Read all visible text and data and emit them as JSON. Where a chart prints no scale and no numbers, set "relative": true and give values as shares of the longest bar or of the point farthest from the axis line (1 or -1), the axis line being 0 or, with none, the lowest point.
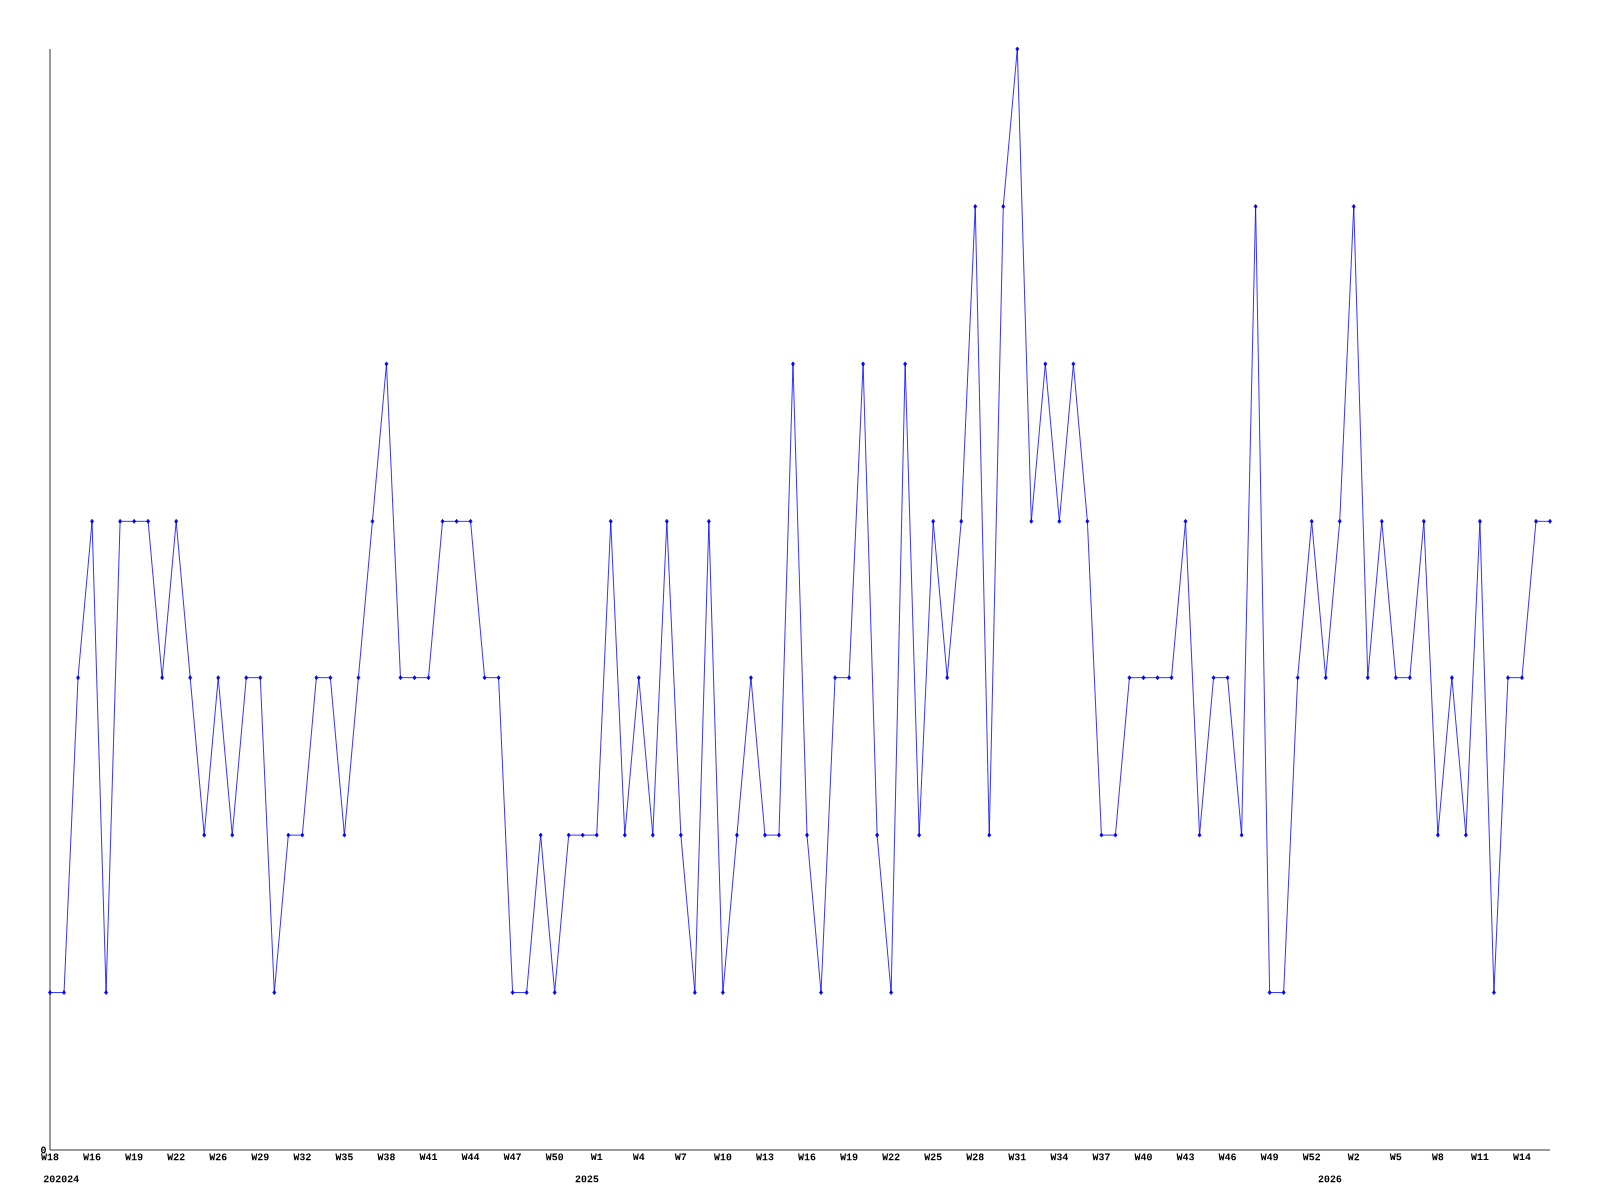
{
  "chart_data": {
    "type": "line",
    "relative": true,
    "color": "#0000ff",
    "marker": "diamond",
    "line_style": "solid",
    "categories": [
      "W18",
      null,
      null,
      "W16",
      null,
      null,
      "W19",
      null,
      null,
      "W22",
      null,
      null,
      "W26",
      null,
      null,
      "W29",
      null,
      null,
      "W32",
      null,
      null,
      "W35",
      null,
      null,
      "W38",
      null,
      null,
      "W41",
      null,
      null,
      "W44",
      null,
      null,
      "W47",
      null,
      null,
      "W50",
      null,
      null,
      "W1",
      null,
      null,
      "W4",
      null,
      null,
      "W7",
      null,
      null,
      "W10",
      null,
      null,
      "W13",
      null,
      null,
      "W16",
      null,
      null,
      "W19",
      null,
      null,
      "W22",
      null,
      null,
      "W25",
      null,
      null,
      "W28",
      null,
      null,
      "W31",
      null,
      null,
      "W34",
      null,
      null,
      "W37",
      null,
      null,
      "W40",
      null,
      null,
      "W43",
      null,
      null,
      "W46",
      null,
      null,
      "W49",
      null,
      null,
      "W52",
      null,
      null,
      "W2",
      null,
      null,
      "W5",
      null,
      null,
      "W8",
      null,
      null,
      "W11",
      null,
      null,
      "W14",
      null,
      null
    ],
    "values": [
      0.143,
      0.143,
      0.429,
      0.571,
      0.143,
      0.571,
      0.571,
      0.571,
      0.429,
      0.571,
      0.429,
      0.286,
      0.429,
      0.286,
      0.429,
      0.429,
      0.143,
      0.286,
      0.286,
      0.429,
      0.429,
      0.286,
      0.429,
      0.571,
      0.714,
      0.429,
      0.429,
      0.429,
      0.571,
      0.571,
      0.571,
      0.429,
      0.429,
      0.143,
      0.143,
      0.286,
      0.143,
      0.286,
      0.286,
      0.286,
      0.571,
      0.286,
      0.429,
      0.286,
      0.571,
      0.286,
      0.143,
      0.571,
      0.143,
      0.286,
      0.429,
      0.286,
      0.286,
      0.714,
      0.286,
      0.143,
      0.429,
      0.429,
      0.714,
      0.286,
      0.143,
      0.714,
      0.286,
      0.571,
      0.429,
      0.571,
      0.857,
      0.286,
      0.857,
      1,
      0.571,
      0.714,
      0.571,
      0.714,
      0.571,
      0.286,
      0.286,
      0.429,
      0.429,
      0.429,
      0.429,
      0.571,
      0.286,
      0.429,
      0.429,
      0.286,
      0.857,
      0.143,
      0.143,
      0.429,
      0.571,
      0.429,
      0.571,
      0.857,
      0.429,
      0.571,
      0.429,
      0.429,
      0.571,
      0.286,
      0.429,
      0.286,
      0.571,
      0.143,
      0.429,
      0.429,
      0.571,
      0.571
    ],
    "annotations": [
      "0",
      "202024",
      "2025",
      "2026"
    ]
  }
}
